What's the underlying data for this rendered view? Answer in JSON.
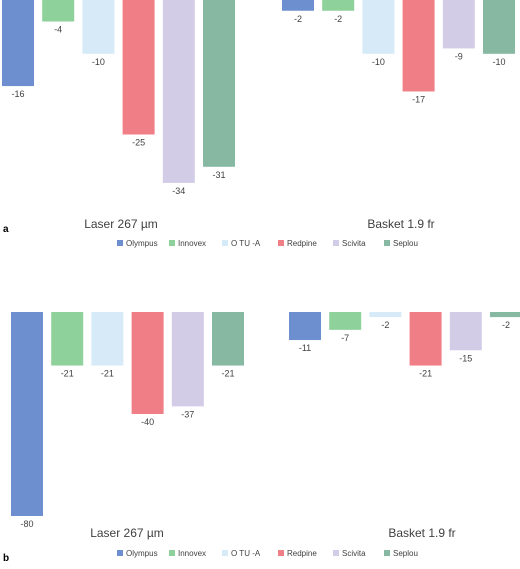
{
  "chart_data": [
    {
      "type": "bar",
      "panel_label": "a",
      "groups": [
        "Laser 267 µm",
        "Basket 1.9 fr"
      ],
      "series": [
        {
          "name": "Olympus",
          "color": "#6e8fcf",
          "values": [
            -16,
            -2
          ]
        },
        {
          "name": "Innovex",
          "color": "#8fd19a",
          "values": [
            -4,
            -2
          ]
        },
        {
          "name": "O TU -A",
          "color": "#d6ebf7",
          "values": [
            -10,
            -10
          ]
        },
        {
          "name": "Redpine",
          "color": "#f07e86",
          "values": [
            -25,
            -17
          ]
        },
        {
          "name": "Scivita",
          "color": "#d3cce7",
          "values": [
            -34,
            -9
          ]
        },
        {
          "name": "Seplou",
          "color": "#86b8a2",
          "values": [
            -31,
            -10
          ]
        }
      ],
      "legend": "bottom"
    },
    {
      "type": "bar",
      "panel_label": "b",
      "groups": [
        "Laser 267 µm",
        "Basket 1.9 fr"
      ],
      "series": [
        {
          "name": "Olympus",
          "color": "#6e8fcf",
          "values": [
            -80,
            -11
          ]
        },
        {
          "name": "Innovex",
          "color": "#8fd19a",
          "values": [
            -21,
            -7
          ]
        },
        {
          "name": "O TU -A",
          "color": "#d6ebf7",
          "values": [
            -21,
            -2
          ]
        },
        {
          "name": "Redpine",
          "color": "#f07e86",
          "values": [
            -40,
            -21
          ]
        },
        {
          "name": "Scivita",
          "color": "#d3cce7",
          "values": [
            -37,
            -15
          ]
        },
        {
          "name": "Seplou",
          "color": "#86b8a2",
          "values": [
            -21,
            -2
          ]
        }
      ],
      "legend": "bottom"
    }
  ]
}
